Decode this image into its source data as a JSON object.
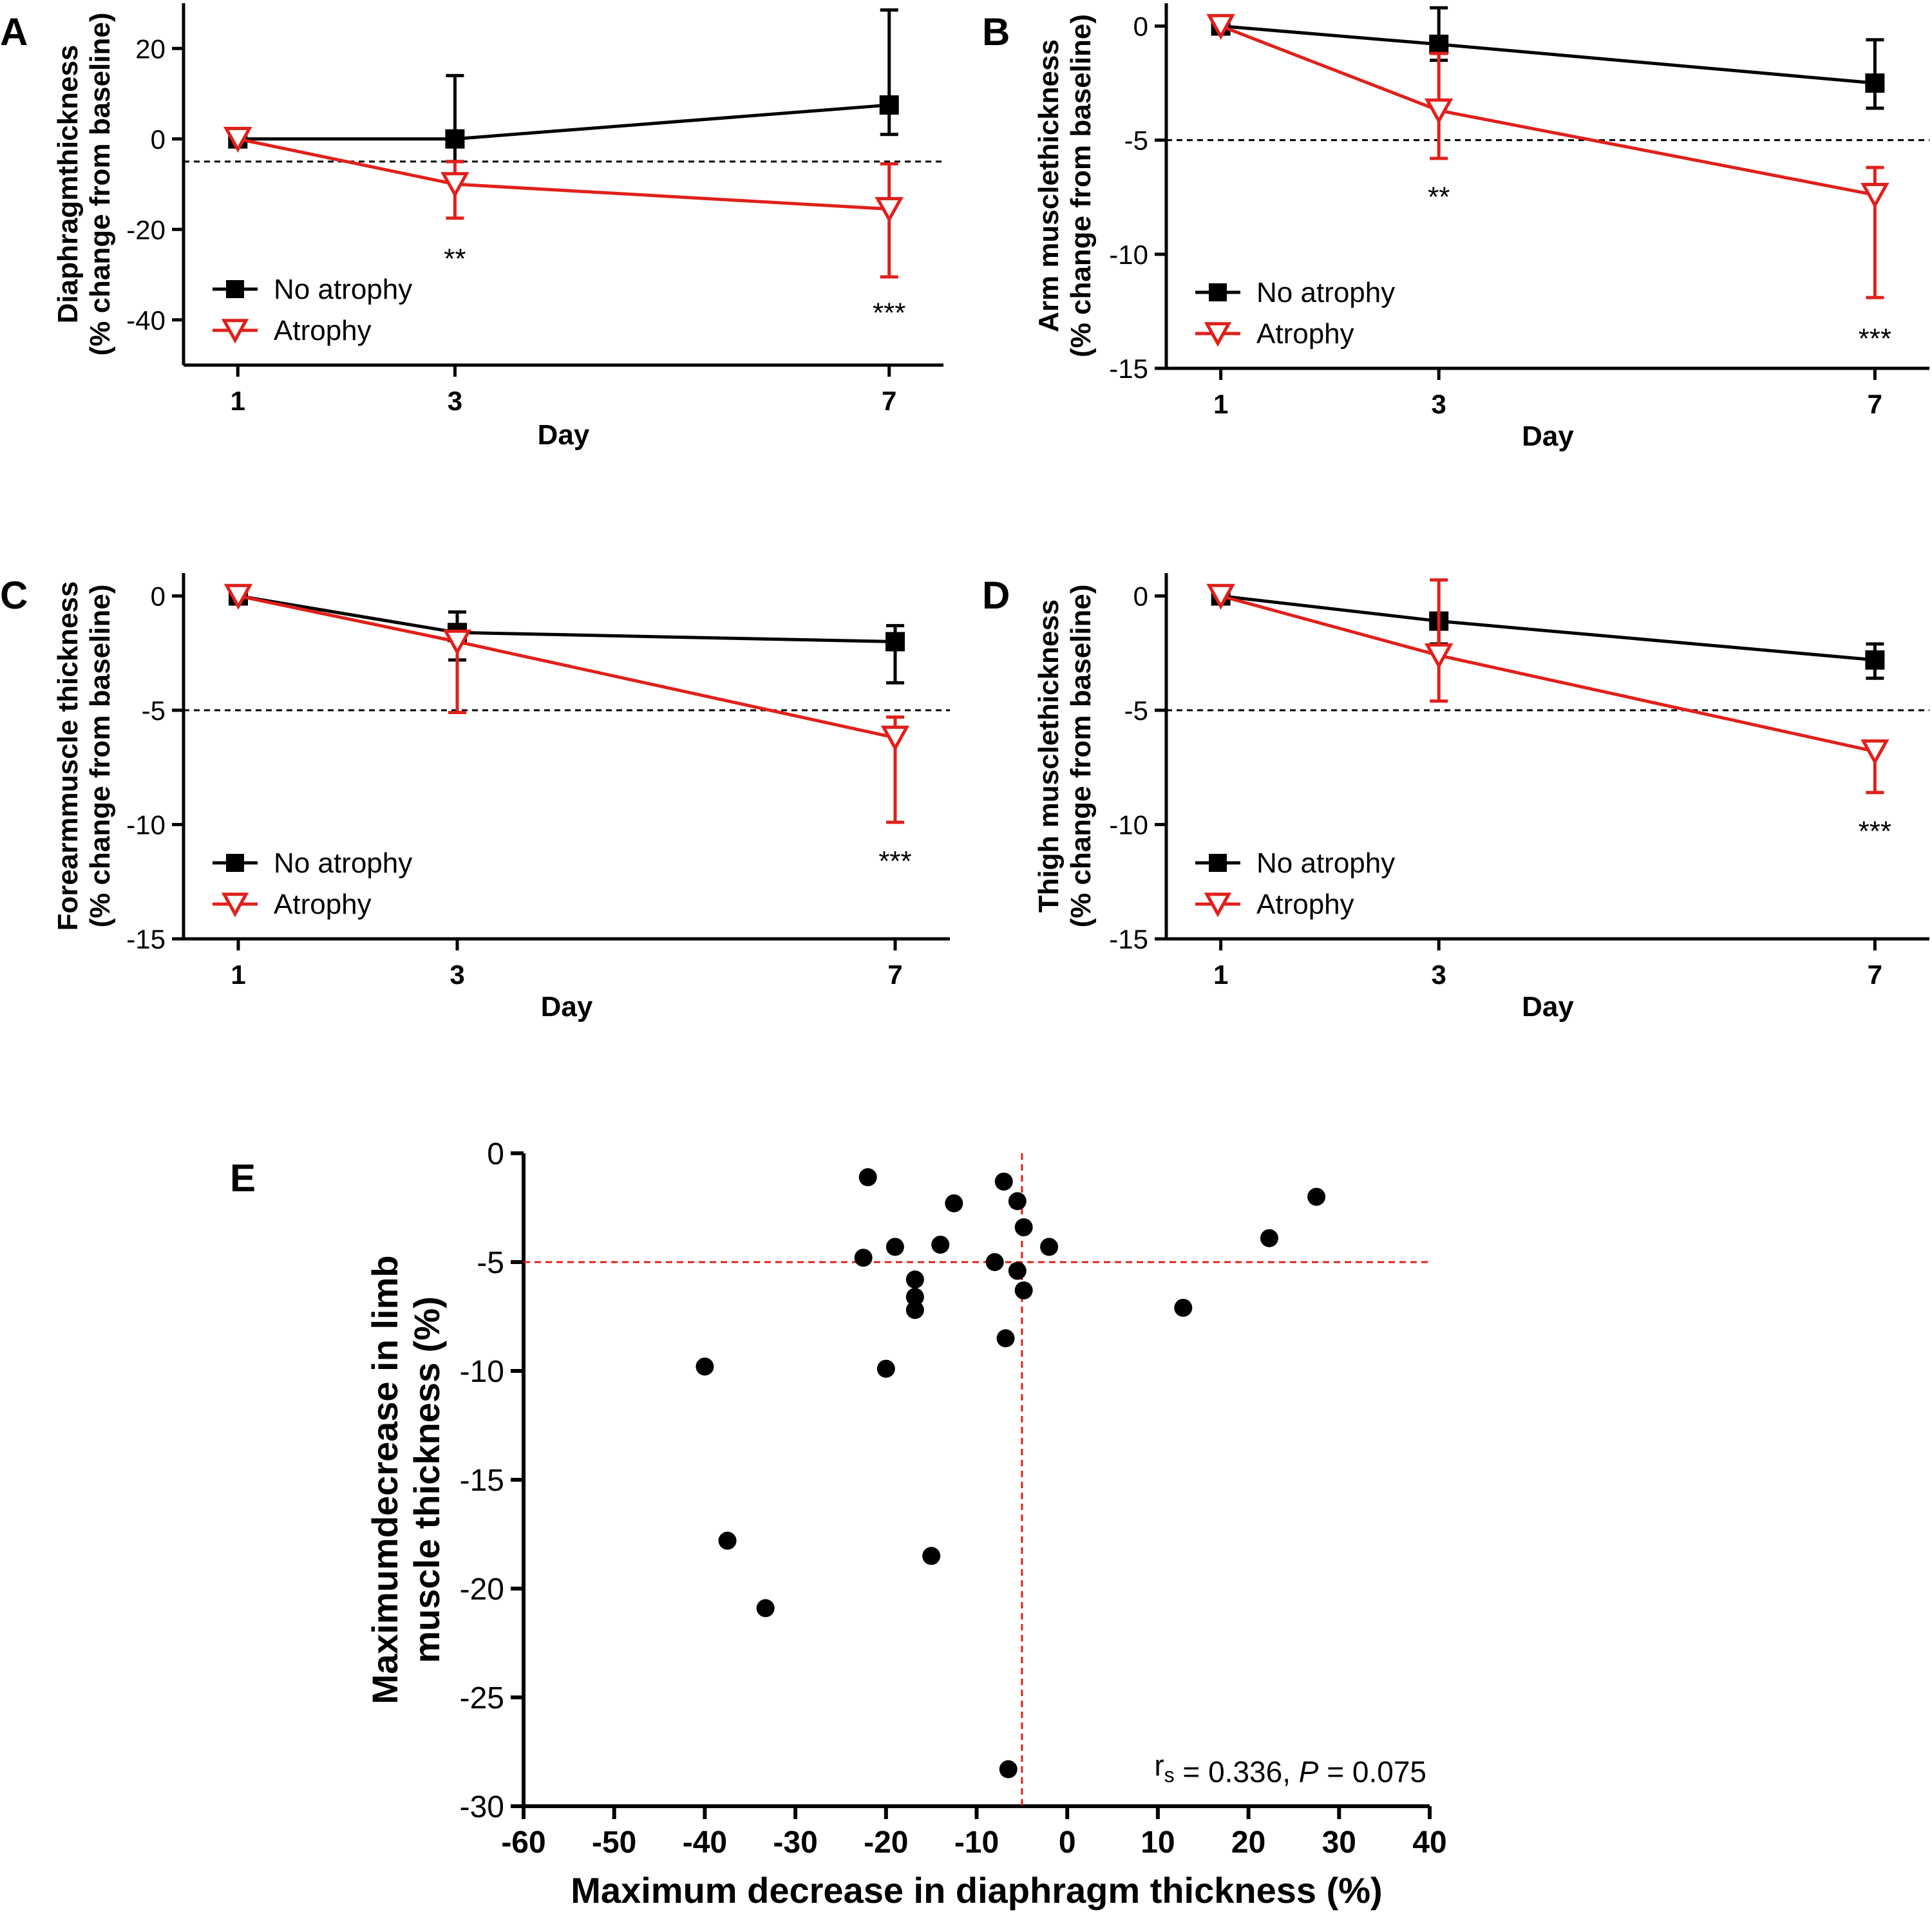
{
  "figure": {
    "colors": {
      "no_atrophy": "#000000",
      "atrophy": "#e0201b",
      "threshold_line": "#000000",
      "scatter_threshold": "#e0201b"
    },
    "icons": {
      "no_atrophy_marker": "filled-square-marker",
      "atrophy_marker": "open-down-triangle-marker",
      "scatter_marker": "filled-circle-marker"
    }
  },
  "chart_data": [
    {
      "panel": "A",
      "type": "line",
      "ylabel_lines": [
        "Diaphragmthickness",
        "(% change from baseline)"
      ],
      "xlabel": "Day",
      "x": [
        1,
        3,
        7
      ],
      "x_ticks": [
        "1",
        "3",
        "7"
      ],
      "xlim": [
        0.5,
        7.5
      ],
      "ylim": [
        -50,
        30
      ],
      "y_ticks": [
        20,
        0,
        -20,
        -40
      ],
      "y_tick_labels": [
        "20",
        "0",
        "-20",
        "-40"
      ],
      "threshold": -5,
      "legend_position": "bottom-left",
      "series": [
        {
          "name": "No atrophy",
          "key": "no_atrophy",
          "values": [
            0,
            0,
            7.5
          ],
          "err_low": [
            0,
            5,
            6.5
          ],
          "err_high": [
            0,
            14,
            21
          ]
        },
        {
          "name": "Atrophy",
          "key": "atrophy",
          "values": [
            0,
            -10,
            -15.5
          ],
          "err_low": [
            0,
            7.5,
            15
          ],
          "err_high": [
            2,
            5,
            10
          ]
        }
      ],
      "annotations": [
        {
          "x": 3,
          "y": -26,
          "text": "**"
        },
        {
          "x": 7,
          "y": -38,
          "text": "***"
        }
      ]
    },
    {
      "panel": "B",
      "type": "line",
      "ylabel_lines": [
        "Arm musclethickness",
        "(% change from baseline)"
      ],
      "xlabel": "Day",
      "x": [
        1,
        3,
        7
      ],
      "x_ticks": [
        "1",
        "3",
        "7"
      ],
      "xlim": [
        0.5,
        7.5
      ],
      "ylim": [
        -15,
        1
      ],
      "y_ticks": [
        0,
        -5,
        -10,
        -15
      ],
      "y_tick_labels": [
        "0",
        "-5",
        "-10",
        "-15"
      ],
      "threshold": -5,
      "legend_position": "bottom-left",
      "series": [
        {
          "name": "No atrophy",
          "key": "no_atrophy",
          "values": [
            0,
            -0.8,
            -2.5
          ],
          "err_low": [
            0,
            0.7,
            1.1
          ],
          "err_high": [
            0,
            1.6,
            1.9
          ]
        },
        {
          "name": "Atrophy",
          "key": "atrophy",
          "values": [
            0,
            -3.7,
            -7.4
          ],
          "err_low": [
            0,
            2.1,
            4.5
          ],
          "err_high": [
            0.4,
            2.5,
            1.2
          ]
        }
      ],
      "annotations": [
        {
          "x": 3,
          "y": -7.4,
          "text": "**"
        },
        {
          "x": 7,
          "y": -13.6,
          "text": "***"
        }
      ]
    },
    {
      "panel": "C",
      "type": "line",
      "ylabel_lines": [
        "Forearmmuscle thickness",
        "(% change from baseline)"
      ],
      "xlabel": "Day",
      "x": [
        1,
        3,
        7
      ],
      "x_ticks": [
        "1",
        "3",
        "7"
      ],
      "xlim": [
        0.5,
        7.5
      ],
      "ylim": [
        -15,
        1
      ],
      "y_ticks": [
        0,
        -5,
        -10,
        -15
      ],
      "y_tick_labels": [
        "0",
        "-5",
        "-10",
        "-15"
      ],
      "threshold": -5,
      "legend_position": "bottom-left",
      "series": [
        {
          "name": "No atrophy",
          "key": "no_atrophy",
          "values": [
            0,
            -1.6,
            -2.0
          ],
          "err_low": [
            0,
            1.2,
            1.8
          ],
          "err_high": [
            0,
            0.9,
            0.7
          ]
        },
        {
          "name": "Atrophy",
          "key": "atrophy",
          "values": [
            0,
            -2.0,
            -6.2
          ],
          "err_low": [
            0,
            3.1,
            3.7
          ],
          "err_high": [
            0.3,
            0,
            0.9
          ]
        }
      ],
      "annotations": [
        {
          "x": 7,
          "y": -11.5,
          "text": "***"
        }
      ]
    },
    {
      "panel": "D",
      "type": "line",
      "ylabel_lines": [
        "Thigh musclethickness",
        "(% change from baseline)"
      ],
      "xlabel": "Day",
      "x": [
        1,
        3,
        7
      ],
      "x_ticks": [
        "1",
        "3",
        "7"
      ],
      "xlim": [
        0.5,
        7.5
      ],
      "ylim": [
        -15,
        1
      ],
      "y_ticks": [
        0,
        -5,
        -10,
        -15
      ],
      "y_tick_labels": [
        "0",
        "-5",
        "-10",
        "-15"
      ],
      "threshold": -5,
      "legend_position": "bottom-left",
      "series": [
        {
          "name": "No atrophy",
          "key": "no_atrophy",
          "values": [
            0,
            -1.1,
            -2.8
          ],
          "err_low": [
            0,
            1.0,
            0.8
          ],
          "err_high": [
            0,
            0,
            0.7
          ]
        },
        {
          "name": "Atrophy",
          "key": "atrophy",
          "values": [
            0,
            -2.6,
            -6.8
          ],
          "err_low": [
            0,
            2.0,
            1.8
          ],
          "err_high": [
            0.3,
            3.3,
            0
          ]
        }
      ],
      "annotations": [
        {
          "x": 7,
          "y": -10.2,
          "text": "***"
        }
      ]
    },
    {
      "panel": "E",
      "type": "scatter",
      "xlabel": "Maximum decrease in diaphragm thickness (%)",
      "ylabel_lines": [
        "Maximumdecrease in limb",
        "muscle thickness (%)"
      ],
      "xlim": [
        -60,
        40
      ],
      "ylim": [
        -30,
        0
      ],
      "x_ticks": [
        -60,
        -50,
        -40,
        -30,
        -20,
        -10,
        0,
        10,
        20,
        30,
        40
      ],
      "x_tick_labels": [
        "-60",
        "-50",
        "-40",
        "-30",
        "-20",
        "-10",
        "0",
        "10",
        "20",
        "30",
        "40"
      ],
      "y_ticks": [
        0,
        -5,
        -10,
        -15,
        -20,
        -25,
        -30
      ],
      "y_tick_labels": [
        "0",
        "-5",
        "-10",
        "-15",
        "-20",
        "-25",
        "-30"
      ],
      "threshold_x": -5,
      "threshold_y": -5,
      "stat": {
        "r": "r",
        "sub": "s",
        "rvalue": " = 0.336, ",
        "p": "P",
        "pvalue": " = 0.075"
      },
      "points": [
        [
          -22,
          -1.1
        ],
        [
          -12.5,
          -2.3
        ],
        [
          -7,
          -1.3
        ],
        [
          -5.5,
          -2.2
        ],
        [
          -4.8,
          -3.4
        ],
        [
          27.5,
          -2.0
        ],
        [
          22.3,
          -3.9
        ],
        [
          -19,
          -4.3
        ],
        [
          -14,
          -4.2
        ],
        [
          -2,
          -4.3
        ],
        [
          -22.5,
          -4.8
        ],
        [
          -8,
          -5.0
        ],
        [
          -5.5,
          -5.4
        ],
        [
          -16.8,
          -5.8
        ],
        [
          -4.8,
          -6.3
        ],
        [
          -16.8,
          -6.6
        ],
        [
          -16.8,
          -7.2
        ],
        [
          12.8,
          -7.1
        ],
        [
          -6.8,
          -8.5
        ],
        [
          -40,
          -9.8
        ],
        [
          -20,
          -9.9
        ],
        [
          -37.5,
          -17.8
        ],
        [
          -15,
          -18.5
        ],
        [
          -33.3,
          -20.9
        ],
        [
          -6.5,
          -28.3
        ]
      ]
    }
  ]
}
